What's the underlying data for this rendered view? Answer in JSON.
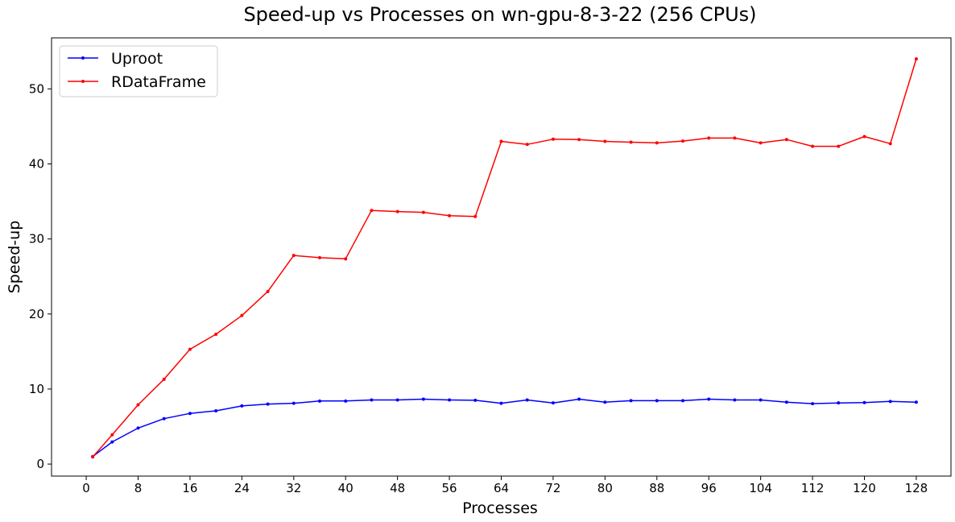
{
  "chart_data": {
    "type": "line",
    "title": "Speed-up vs Processes on wn-gpu-8-3-22 (256 CPUs)",
    "xlabel": "Processes",
    "ylabel": "Speed-up",
    "xlim": [
      -5.35,
      133.35
    ],
    "ylim": [
      -1.6,
      56.8
    ],
    "xticks": [
      0,
      8,
      16,
      24,
      32,
      40,
      48,
      56,
      64,
      72,
      80,
      88,
      96,
      104,
      112,
      120,
      128
    ],
    "yticks": [
      0,
      10,
      20,
      30,
      40,
      50
    ],
    "grid": false,
    "legend_position": "top-left",
    "x": [
      1,
      4,
      8,
      12,
      16,
      20,
      24,
      28,
      32,
      36,
      40,
      44,
      48,
      52,
      56,
      60,
      64,
      68,
      72,
      76,
      80,
      84,
      88,
      92,
      96,
      100,
      104,
      108,
      112,
      116,
      120,
      124,
      128
    ],
    "series": [
      {
        "name": "Uproot",
        "color": "#0000ff",
        "values": [
          1.0,
          2.95,
          4.8,
          6.05,
          6.75,
          7.1,
          7.75,
          8.0,
          8.1,
          8.4,
          8.4,
          8.55,
          8.55,
          8.65,
          8.55,
          8.5,
          8.1,
          8.55,
          8.15,
          8.65,
          8.25,
          8.45,
          8.45,
          8.45,
          8.65,
          8.55,
          8.55,
          8.25,
          8.05,
          8.15,
          8.2,
          8.35,
          8.25
        ]
      },
      {
        "name": "RDataFrame",
        "color": "#ff0000",
        "values": [
          0.95,
          3.9,
          7.9,
          11.3,
          15.3,
          17.3,
          19.8,
          23.0,
          27.8,
          27.5,
          27.35,
          33.8,
          33.65,
          33.55,
          33.1,
          33.0,
          43.0,
          42.6,
          43.3,
          43.25,
          43.0,
          42.9,
          42.8,
          43.05,
          43.45,
          43.45,
          42.8,
          43.25,
          42.35,
          42.35,
          43.65,
          42.7,
          54.0
        ]
      }
    ]
  }
}
